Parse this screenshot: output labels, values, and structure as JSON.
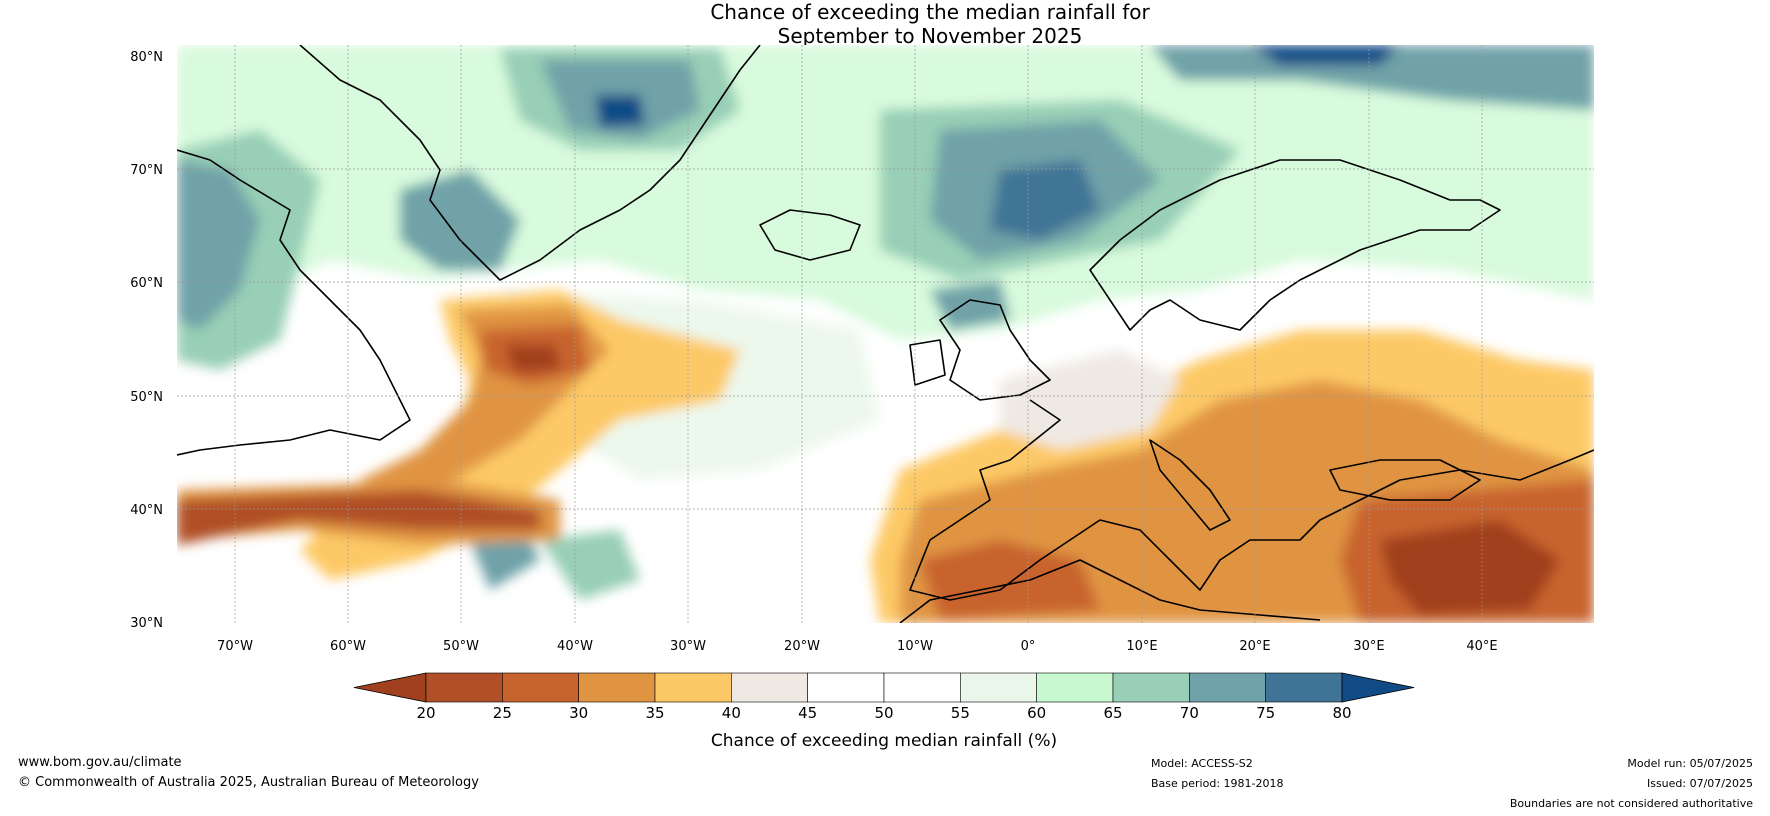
{
  "title": {
    "line1": "Chance of exceeding the median rainfall for",
    "line2": "September to November 2025"
  },
  "map": {
    "lat_labels": [
      "80°N",
      "70°N",
      "60°N",
      "50°N",
      "40°N",
      "30°N"
    ],
    "lon_labels": [
      "70°W",
      "60°W",
      "50°W",
      "40°W",
      "30°W",
      "20°W",
      "10°W",
      "0°",
      "10°E",
      "20°E",
      "30°E",
      "40°E"
    ],
    "colors": {
      "ocean_background": "#ffffff",
      "coastline": "#000000",
      "borders": "#808080",
      "gridlines": "#999999"
    }
  },
  "colorbar": {
    "ticks": [
      "20",
      "25",
      "30",
      "35",
      "40",
      "45",
      "50",
      "55",
      "60",
      "65",
      "70",
      "75",
      "80"
    ],
    "label": "Chance of exceeding median rainfall (%)",
    "colors": [
      "#a0401f",
      "#b04f28",
      "#c8632e",
      "#e09442",
      "#fdc966",
      "#efe9e4",
      "#ffffff",
      "#ffffff",
      "#e9f6e9",
      "#c8f8cf",
      "#98cfb6",
      "#6fa2a8",
      "#3f7496",
      "#114b86"
    ]
  },
  "footer": {
    "website": "www.bom.gov.au/climate",
    "copyright": "© Commonwealth of Australia 2025, Australian Bureau of Meteorology",
    "model": "Model: ACCESS-S2",
    "base_period": "Base period: 1981-2018",
    "model_run": "Model run: 05/07/2025",
    "issued": "Issued: 07/07/2025",
    "disclaimer": "Boundaries are not considered authoritative"
  }
}
